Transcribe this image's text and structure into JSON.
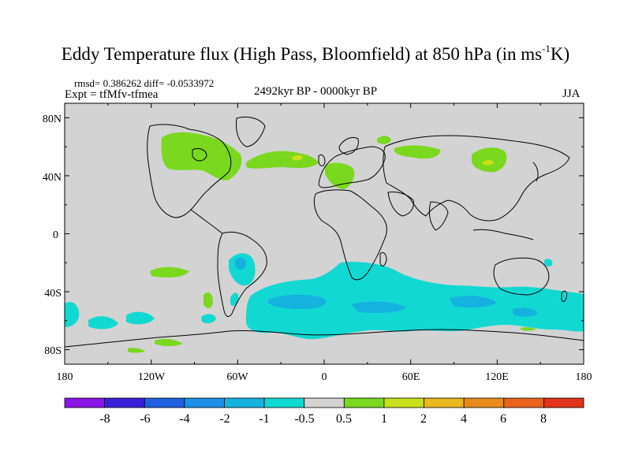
{
  "title": {
    "main": "Eddy Temperature flux (High Pass, Bloomfield) at 850 hPa (in ms",
    "sup": "-1",
    "tail": "K)"
  },
  "subtitle_stats": "rmsd= 0.386262 diff= -0.0533972",
  "subtitle_expt": "Expt = tfMfv-tfmea",
  "subtitle_period": "2492kyr BP - 0000kyr BP",
  "subtitle_season": "JJA",
  "map": {
    "projection": "cylindrical equidistant",
    "lon_range": [
      -180,
      180
    ],
    "lat_range": [
      -90,
      90
    ],
    "background_color": "#d3d3d3",
    "coastline_color": "#000000",
    "y_ticks": [
      "80N",
      "40N",
      "0",
      "40S",
      "80S"
    ],
    "x_ticks": [
      "180",
      "120W",
      "60W",
      "0",
      "60E",
      "120E",
      "180"
    ]
  },
  "colorbar": {
    "labels": [
      "-8",
      "-6",
      "-4",
      "-2",
      "-1",
      "-0.5",
      "0.5",
      "1",
      "2",
      "4",
      "6",
      "8"
    ],
    "colors": [
      "#8a16e6",
      "#3a1fd8",
      "#1f5fe0",
      "#1c8ee6",
      "#15b2e0",
      "#12d8d2",
      "#d3d3d3",
      "#7ad81e",
      "#c8e01a",
      "#e8b81e",
      "#e88a1e",
      "#e8641e",
      "#e2341c"
    ]
  }
}
